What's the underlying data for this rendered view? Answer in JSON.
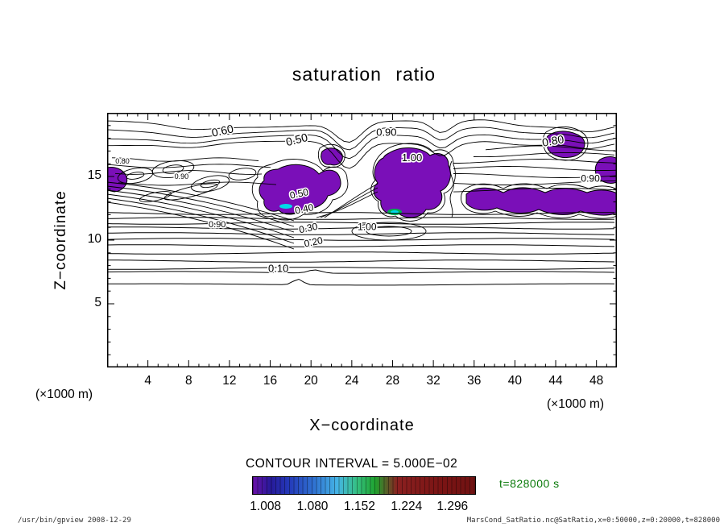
{
  "title": "saturation ratio",
  "plot": {
    "x_axis": {
      "label": "X−coordinate",
      "unit_left": "(×1000 m)",
      "unit_right": "(×1000 m)"
    },
    "y_axis": {
      "label": "Z−coordinate"
    }
  },
  "legend": {
    "contour_interval_text": "CONTOUR INTERVAL = 5.000E−02",
    "time_text": "t=828000 s"
  },
  "footer": {
    "left": "/usr/bin/gpview  2008-12-29",
    "right": "MarsCond_SatRatio.nc@SatRatio,x=0:50000,z=0:20000,t=828000"
  },
  "chart_data": {
    "type": "heatmap",
    "subtype": "filled_contour",
    "title": "saturation ratio",
    "xlabel": "X−coordinate (×1000 m)",
    "ylabel": "Z−coordinate (×1000 m)",
    "xlim": [
      0,
      50
    ],
    "ylim": [
      0,
      20
    ],
    "x_ticks": [
      4,
      8,
      12,
      16,
      20,
      24,
      28,
      32,
      36,
      40,
      44,
      48
    ],
    "y_ticks": [
      5,
      10,
      15
    ],
    "grid": false,
    "contour_interval": 0.05,
    "time": "t=828000 s",
    "fill_color": "#7a0fb8",
    "spot_colors": [
      "#00d9e8",
      "#00b050"
    ],
    "contour_labels": [
      {
        "value": "0.60",
        "x": 11.4,
        "z": 18.3,
        "rot": -12,
        "size": 14
      },
      {
        "value": "0.50",
        "x": 18.7,
        "z": 17.6,
        "rot": -14,
        "size": 14
      },
      {
        "value": "0.90",
        "x": 27.4,
        "z": 18.2,
        "rot": 0,
        "size": 13
      },
      {
        "value": "1.00",
        "x": 29.9,
        "z": 16.2,
        "rot": 0,
        "size": 13
      },
      {
        "value": "0.80",
        "x": 43.8,
        "z": 17.5,
        "rot": -10,
        "size": 14
      },
      {
        "value": "0.90",
        "x": 47.4,
        "z": 14.6,
        "rot": 0,
        "size": 12
      },
      {
        "value": "0.50",
        "x": 18.9,
        "z": 13.4,
        "rot": -12,
        "size": 12
      },
      {
        "value": "0.40",
        "x": 19.4,
        "z": 12.2,
        "rot": -12,
        "size": 12
      },
      {
        "value": "0.30",
        "x": 19.8,
        "z": 10.7,
        "rot": -12,
        "size": 12
      },
      {
        "value": "0.20",
        "x": 20.3,
        "z": 9.6,
        "rot": -12,
        "size": 12
      },
      {
        "value": "0.10",
        "x": 16.8,
        "z": 7.5,
        "rot": 0,
        "size": 13
      },
      {
        "value": "1.00",
        "x": 25.5,
        "z": 10.8,
        "rot": 0,
        "size": 12
      },
      {
        "value": "0.90",
        "x": 10.8,
        "z": 11.0,
        "rot": 0,
        "size": 11
      },
      {
        "value": "0.80",
        "x": 1.5,
        "z": 16.0,
        "rot": 0,
        "size": 9
      },
      {
        "value": "0.90",
        "x": 7.3,
        "z": 14.8,
        "rot": 0,
        "size": 9
      }
    ],
    "colorbar": {
      "tick_labels": [
        "1.008",
        "1.080",
        "1.152",
        "1.224",
        "1.296"
      ],
      "tick_values": [
        1.008,
        1.08,
        1.152,
        1.224,
        1.296
      ],
      "colors": [
        [
          "#6a10a8",
          "0%"
        ],
        [
          "#271a9a",
          "8%"
        ],
        [
          "#2438b8",
          "16%"
        ],
        [
          "#2f6fd0",
          "27%"
        ],
        [
          "#45b4e6",
          "38%"
        ],
        [
          "#35c080",
          "47%"
        ],
        [
          "#1fa32f",
          "55%"
        ],
        [
          "#8a2020",
          "65%"
        ],
        [
          "#7a1414",
          "85%"
        ],
        [
          "#701212",
          "100%"
        ]
      ],
      "position": "bottom"
    },
    "filled_regions_above_1": [
      {
        "x_range": [
          15.2,
          23.2
        ],
        "z_range": [
          11.7,
          15.8
        ]
      },
      {
        "x_range": [
          26.0,
          33.6
        ],
        "z_range": [
          11.7,
          17.3
        ]
      },
      {
        "x_range": [
          34.8,
          50.0
        ],
        "z_range": [
          11.7,
          14.8
        ]
      },
      {
        "x_range": [
          0.0,
          1.9
        ],
        "z_range": [
          13.6,
          15.7
        ]
      },
      {
        "x_range": [
          43.2,
          46.6
        ],
        "z_range": [
          16.4,
          18.5
        ]
      },
      {
        "x_range": [
          48.2,
          50.0
        ],
        "z_range": [
          14.5,
          16.3
        ]
      }
    ],
    "local_maxima_spots": [
      {
        "x": 17.6,
        "z": 12.6
      },
      {
        "x": 28.2,
        "z": 12.2
      }
    ]
  }
}
